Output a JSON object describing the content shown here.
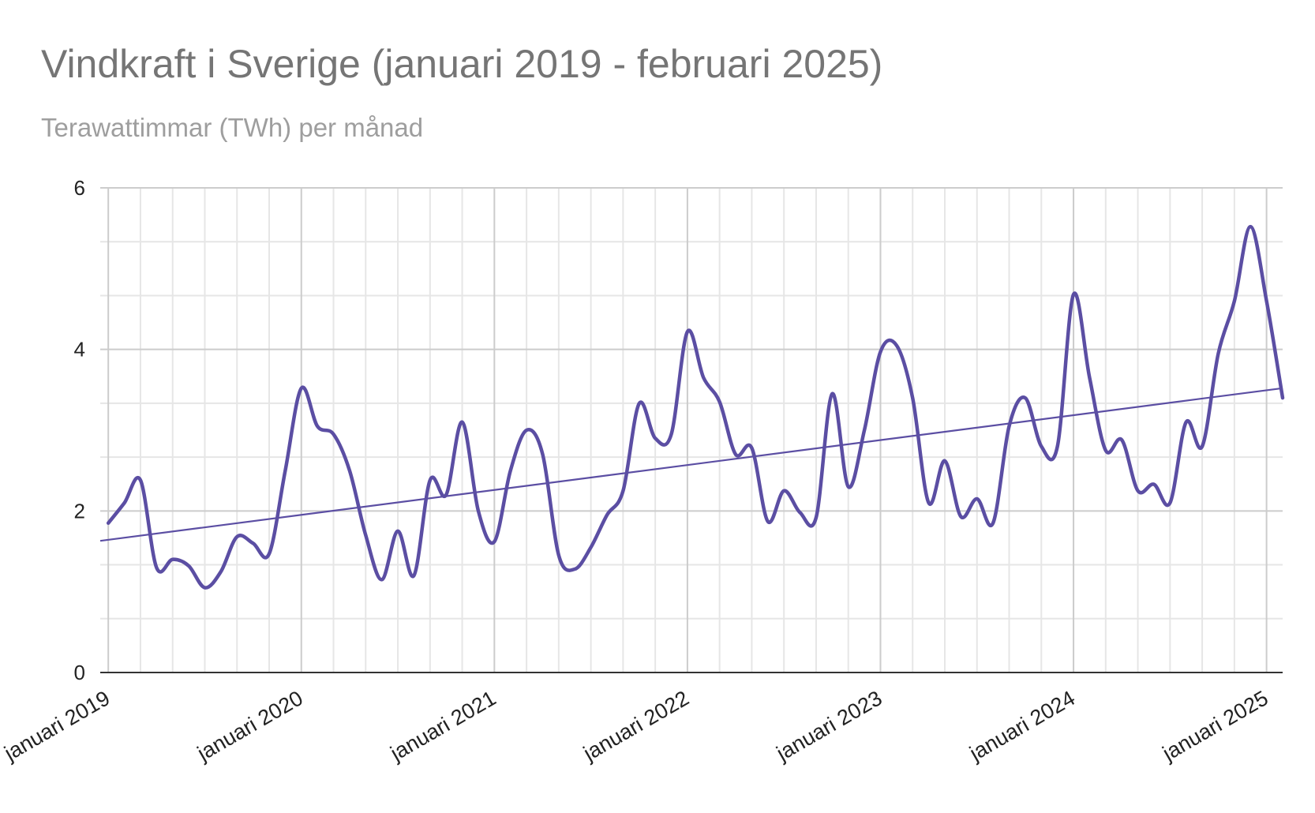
{
  "chart_data": {
    "type": "line",
    "title": "Vindkraft i Sverige (januari 2019 - februari 2025)",
    "subtitle": "Terawattimmar (TWh) per månad",
    "xlabel": "",
    "ylabel": "",
    "ylim": [
      0,
      6
    ],
    "yticks": [
      "0",
      "2",
      "4",
      "6"
    ],
    "xticks": [
      {
        "date": "2019-01",
        "label": "januari 2019"
      },
      {
        "date": "2020-01",
        "label": "januari 2020"
      },
      {
        "date": "2021-01",
        "label": "januari 2021"
      },
      {
        "date": "2022-01",
        "label": "januari 2022"
      },
      {
        "date": "2023-01",
        "label": "januari 2023"
      },
      {
        "date": "2024-01",
        "label": "januari 2024"
      },
      {
        "date": "2025-01",
        "label": "januari 2025"
      }
    ],
    "grid": true,
    "legend": "none",
    "x": [
      "2019-01",
      "2019-02",
      "2019-03",
      "2019-04",
      "2019-05",
      "2019-06",
      "2019-07",
      "2019-08",
      "2019-09",
      "2019-10",
      "2019-11",
      "2019-12",
      "2020-01",
      "2020-02",
      "2020-03",
      "2020-04",
      "2020-05",
      "2020-06",
      "2020-07",
      "2020-08",
      "2020-09",
      "2020-10",
      "2020-11",
      "2020-12",
      "2021-01",
      "2021-02",
      "2021-03",
      "2021-04",
      "2021-05",
      "2021-06",
      "2021-07",
      "2021-08",
      "2021-09",
      "2021-10",
      "2021-11",
      "2021-12",
      "2022-01",
      "2022-02",
      "2022-03",
      "2022-04",
      "2022-05",
      "2022-06",
      "2022-07",
      "2022-08",
      "2022-09",
      "2022-10",
      "2022-11",
      "2022-12",
      "2023-01",
      "2023-02",
      "2023-03",
      "2023-04",
      "2023-05",
      "2023-06",
      "2023-07",
      "2023-08",
      "2023-09",
      "2023-10",
      "2023-11",
      "2023-12",
      "2024-01",
      "2024-02",
      "2024-03",
      "2024-04",
      "2024-05",
      "2024-06",
      "2024-07",
      "2024-08",
      "2024-09",
      "2024-10",
      "2024-11",
      "2024-12",
      "2025-01",
      "2025-02"
    ],
    "series": [
      {
        "values": [
          1.85,
          2.1,
          2.38,
          1.3,
          1.4,
          1.32,
          1.05,
          1.25,
          1.68,
          1.6,
          1.47,
          2.5,
          3.52,
          3.05,
          2.95,
          2.5,
          1.7,
          1.15,
          1.75,
          1.2,
          2.38,
          2.2,
          3.1,
          2.0,
          1.62,
          2.5,
          3.0,
          2.7,
          1.45,
          1.28,
          1.55,
          1.95,
          2.25,
          3.33,
          2.9,
          2.95,
          4.22,
          3.65,
          3.35,
          2.7,
          2.78,
          1.87,
          2.25,
          1.98,
          1.92,
          3.45,
          2.3,
          3.0,
          3.97,
          4.05,
          3.4,
          2.1,
          2.62,
          1.93,
          2.15,
          1.85,
          3.05,
          3.4,
          2.8,
          2.8,
          4.68,
          3.65,
          2.75,
          2.88,
          2.25,
          2.33,
          2.1,
          3.1,
          2.8,
          3.95,
          4.6,
          5.52,
          4.6,
          3.4
        ],
        "color": "#5b4ea3"
      }
    ],
    "trendline": {
      "start": 1.63,
      "end": 3.52,
      "color": "#5b4ea3"
    }
  }
}
